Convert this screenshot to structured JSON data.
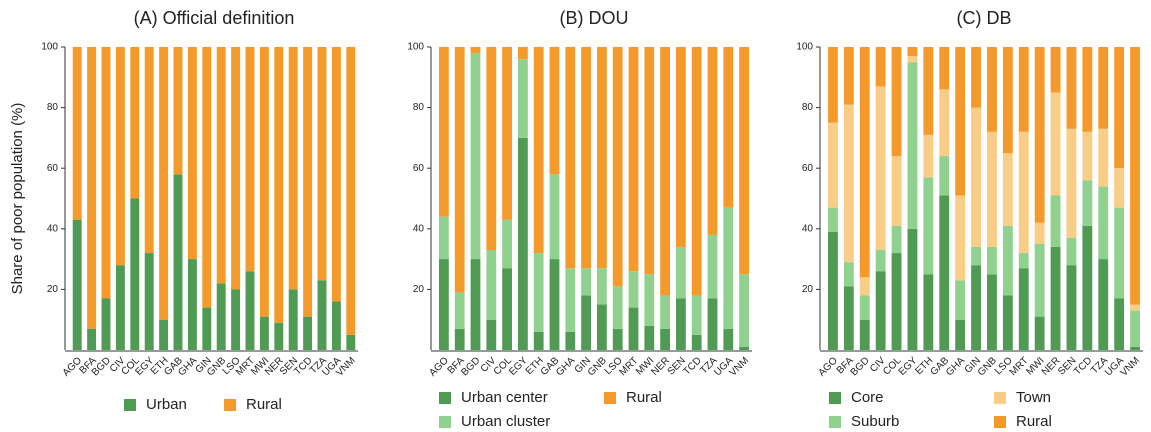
{
  "chart_data": [
    {
      "type": "bar",
      "stacked": true,
      "title": "(A) Official definition",
      "ylabel": "Share of poor population (%)",
      "categories": [
        "AGO",
        "BFA",
        "BGD",
        "CIV",
        "COL",
        "EGY",
        "ETH",
        "GAB",
        "GHA",
        "GIN",
        "GNB",
        "LSO",
        "MRT",
        "MWI",
        "NER",
        "SEN",
        "TCD",
        "TZA",
        "UGA",
        "VNM"
      ],
      "series": [
        {
          "name": "Urban",
          "color": "#4f9b54",
          "values": [
            43,
            7,
            17,
            28,
            50,
            32,
            10,
            58,
            30,
            14,
            22,
            20,
            26,
            11,
            9,
            20,
            11,
            23,
            16,
            5
          ]
        },
        {
          "name": "Rural",
          "color": "#f39a2b",
          "values": [
            57,
            93,
            83,
            72,
            50,
            68,
            90,
            42,
            70,
            86,
            78,
            80,
            74,
            89,
            91,
            80,
            89,
            77,
            84,
            95
          ]
        }
      ],
      "ylim": [
        0,
        100
      ],
      "yticks": [
        20,
        40,
        60,
        80,
        100
      ]
    },
    {
      "type": "bar",
      "stacked": true,
      "title": "(B) DOU",
      "categories": [
        "AGO",
        "BFA",
        "BGD",
        "CIV",
        "COL",
        "EGY",
        "ETH",
        "GAB",
        "GHA",
        "GIN",
        "GNB",
        "LSO",
        "MRT",
        "MWI",
        "NER",
        "SEN",
        "TCD",
        "TZA",
        "UGA",
        "VNM"
      ],
      "series": [
        {
          "name": "Urban center",
          "color": "#4f9b54",
          "values": [
            30,
            7,
            30,
            10,
            27,
            70,
            6,
            30,
            6,
            18,
            15,
            7,
            14,
            8,
            7,
            17,
            5,
            17,
            7,
            1
          ]
        },
        {
          "name": "Urban cluster",
          "color": "#91d18f",
          "values": [
            14,
            12,
            68,
            23,
            16,
            26,
            26,
            28,
            21,
            9,
            12,
            14,
            12,
            17,
            11,
            17,
            13,
            21,
            40,
            24
          ]
        },
        {
          "name": "Rural",
          "color": "#f39a2b",
          "values": [
            56,
            81,
            2,
            67,
            57,
            4,
            68,
            42,
            73,
            73,
            73,
            79,
            74,
            75,
            82,
            66,
            82,
            62,
            53,
            75
          ]
        }
      ],
      "ylim": [
        0,
        100
      ],
      "yticks": [
        20,
        40,
        60,
        80,
        100
      ]
    },
    {
      "type": "bar",
      "stacked": true,
      "title": "(C) DB",
      "categories": [
        "AGO",
        "BFA",
        "BGD",
        "CIV",
        "COL",
        "EGY",
        "ETH",
        "GAB",
        "GHA",
        "GIN",
        "GNB",
        "LSO",
        "MRT",
        "MWI",
        "NER",
        "SEN",
        "TCD",
        "TZA",
        "UGA",
        "VNM"
      ],
      "series": [
        {
          "name": "Core",
          "color": "#4f9b54",
          "values": [
            39,
            21,
            10,
            26,
            32,
            40,
            25,
            51,
            10,
            28,
            25,
            18,
            27,
            11,
            34,
            28,
            41,
            30,
            17,
            1
          ]
        },
        {
          "name": "Suburb",
          "color": "#91d18f",
          "values": [
            8,
            8,
            8,
            7,
            9,
            55,
            32,
            13,
            13,
            6,
            9,
            23,
            5,
            24,
            17,
            9,
            15,
            24,
            30,
            12
          ]
        },
        {
          "name": "Town",
          "color": "#f9cd86",
          "values": [
            28,
            52,
            6,
            54,
            23,
            2,
            14,
            22,
            28,
            46,
            38,
            24,
            40,
            7,
            34,
            36,
            16,
            19,
            13,
            2
          ]
        },
        {
          "name": "Rural",
          "color": "#f39a2b",
          "values": [
            25,
            19,
            76,
            13,
            36,
            3,
            29,
            14,
            49,
            20,
            28,
            35,
            28,
            58,
            15,
            27,
            28,
            27,
            40,
            85
          ]
        }
      ],
      "ylim": [
        0,
        100
      ],
      "yticks": [
        20,
        40,
        60,
        80,
        100
      ]
    }
  ]
}
